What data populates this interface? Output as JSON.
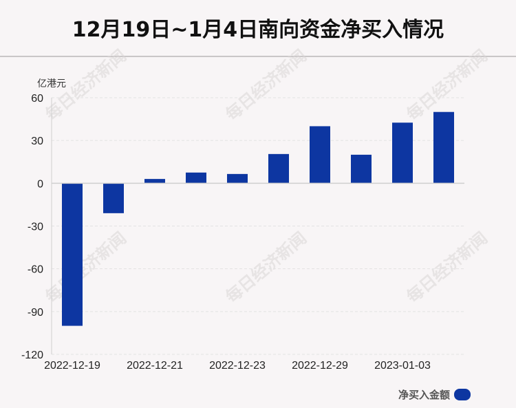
{
  "title": "12月19日~1月4日南向资金净买入情况",
  "watermark": "每日经济新闻",
  "colors": {
    "bar": "#0d36a1",
    "axis": "#cfcfcf",
    "grid": "#e2e2e2"
  },
  "chart_data": {
    "type": "bar",
    "title": "12月19日~1月4日南向资金净买入情况",
    "ylabel": "亿港元",
    "xlabel": "",
    "ylim": [
      -120,
      60
    ],
    "yticks": [
      60,
      30,
      0,
      -30,
      -60,
      -90,
      -120
    ],
    "categories": [
      "2022-12-19",
      "",
      "2022-12-21",
      "",
      "2022-12-23",
      "",
      "2022-12-29",
      "",
      "2023-01-03",
      ""
    ],
    "series": [
      {
        "name": "净买入金额",
        "values": [
          -100,
          -21,
          3,
          7.5,
          6.5,
          20.5,
          40,
          20,
          42.5,
          50
        ]
      }
    ],
    "legend": "bottom-right",
    "grid": true
  }
}
